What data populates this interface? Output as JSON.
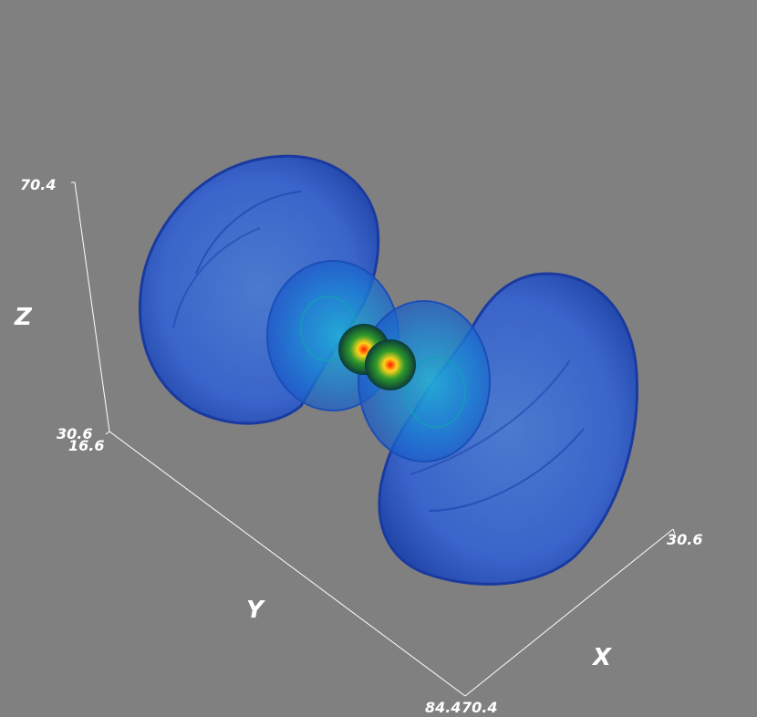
{
  "axes": {
    "x": {
      "name": "X",
      "min": "70.4",
      "max": "30.6"
    },
    "y": {
      "name": "Y",
      "min": "16.6",
      "max": "84.4"
    },
    "z": {
      "name": "Z",
      "min": "30.6",
      "max": "70.4"
    }
  },
  "colors": {
    "background": "#808080",
    "outer_shell": "#2e5fd9",
    "mid_shell": "#1a8fd0",
    "inner_shell": "#0f6f5a",
    "core_hot": "#ff1a00",
    "core_warm": "#ffd21a",
    "axis_line": "#ffffff"
  }
}
